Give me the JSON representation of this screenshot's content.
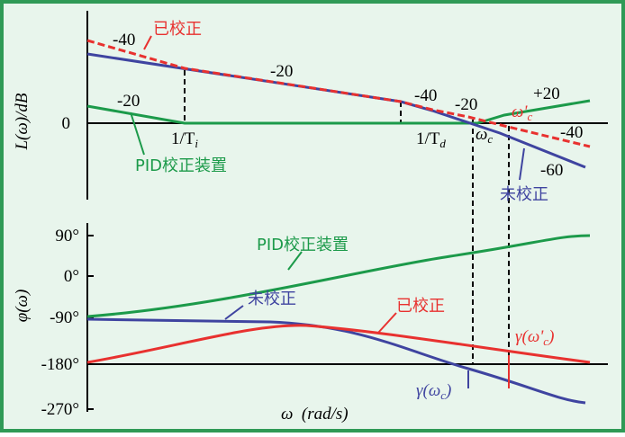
{
  "upper": {
    "y_label": "L(ω)/dB",
    "zero": "0",
    "slopes": [
      "-40",
      "-20",
      "-20",
      "-40",
      "-20",
      "+20",
      "-40",
      "-60"
    ],
    "ti": {
      "main": "1/T",
      "sub": "i"
    },
    "td": {
      "main": "1/T",
      "sub": "d"
    },
    "wc": {
      "main": "ω",
      "sub": "c"
    },
    "wc2": {
      "main": "ω'",
      "sub": "c"
    },
    "corrected": "已校正",
    "pid": "PID校正装置",
    "uncorrected": "未校正"
  },
  "lower": {
    "y_label": "φ(ω)",
    "ticks": [
      "90°",
      "0°",
      "-90°",
      "-180°",
      "-270°"
    ],
    "pid": "PID校正装置",
    "uncorrected": "未校正",
    "corrected": "已校正",
    "gamma2": {
      "main": "γ(ω'",
      "sub": "c",
      "end": ")"
    },
    "gamma": {
      "main": "γ(ω",
      "sub": "c",
      "end": ")"
    },
    "x_label": "ω  (rad/s)"
  }
}
